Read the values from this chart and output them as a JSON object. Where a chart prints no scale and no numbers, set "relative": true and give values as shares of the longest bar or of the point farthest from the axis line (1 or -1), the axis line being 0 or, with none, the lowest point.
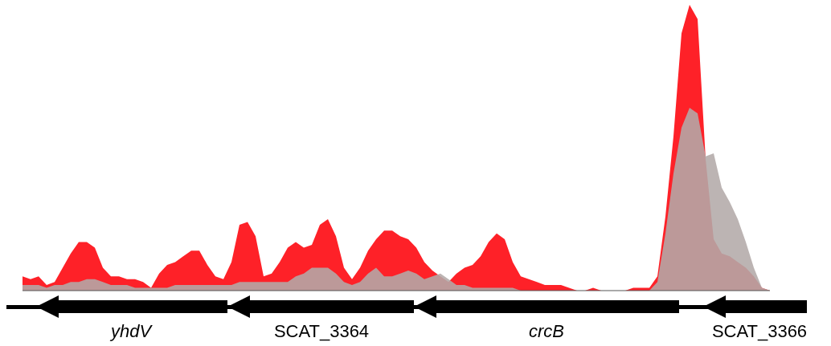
{
  "chart_data": {
    "type": "area",
    "relative": true,
    "categories": [
      null,
      null,
      null,
      null,
      null,
      null,
      null,
      null,
      null,
      null,
      null,
      null,
      null,
      null,
      null,
      null,
      null,
      null,
      null,
      null,
      null,
      null,
      null,
      null,
      null,
      null,
      null,
      null,
      null,
      null,
      null,
      null,
      null,
      null,
      null,
      null,
      null,
      null,
      null,
      null,
      null,
      null,
      null,
      null,
      null,
      null,
      null,
      null,
      null,
      null,
      null,
      null,
      null,
      null,
      null,
      null,
      null,
      null,
      null,
      null,
      null,
      null,
      null,
      null,
      null,
      null,
      null,
      null,
      null,
      null,
      null,
      null,
      null,
      null,
      null,
      null,
      null,
      null,
      null,
      null,
      null,
      null,
      null,
      null,
      null,
      null,
      null,
      null,
      null,
      null,
      null,
      null,
      null,
      null
    ],
    "series": [
      {
        "color": "#fe2128",
        "values": [
          0.05,
          0.04,
          0.05,
          0.02,
          0.03,
          0.08,
          0.13,
          0.17,
          0.17,
          0.15,
          0.08,
          0.05,
          0.05,
          0.04,
          0.04,
          0.03,
          0.01,
          0.06,
          0.09,
          0.1,
          0.12,
          0.14,
          0.14,
          0.09,
          0.05,
          0.04,
          0.1,
          0.23,
          0.24,
          0.19,
          0.05,
          0.06,
          0.1,
          0.15,
          0.17,
          0.15,
          0.16,
          0.23,
          0.25,
          0.19,
          0.08,
          0.04,
          0.08,
          0.14,
          0.18,
          0.21,
          0.21,
          0.19,
          0.18,
          0.15,
          0.1,
          0.07,
          0.05,
          0.03,
          0.06,
          0.08,
          0.09,
          0.12,
          0.17,
          0.2,
          0.18,
          0.1,
          0.05,
          0.04,
          0.03,
          0.02,
          0.02,
          0.02,
          0.01,
          0,
          0,
          0.01,
          0,
          0,
          0,
          0,
          0.01,
          0.01,
          0.01,
          0.05,
          0.26,
          0.54,
          0.9,
          1,
          0.95,
          0.46,
          0.18,
          0.13,
          0.12,
          0.1,
          0.08,
          0.05,
          0.01,
          0
        ]
      },
      {
        "color": "#b3aaa9",
        "values": [
          0.02,
          0.02,
          0.02,
          0.01,
          0.02,
          0.02,
          0.03,
          0.03,
          0.04,
          0.04,
          0.03,
          0.02,
          0.02,
          0.02,
          0.01,
          0.01,
          0.01,
          0.01,
          0.01,
          0.02,
          0.02,
          0.02,
          0.02,
          0.02,
          0.02,
          0.02,
          0.02,
          0.03,
          0.03,
          0.03,
          0.03,
          0.03,
          0.03,
          0.03,
          0.05,
          0.06,
          0.08,
          0.08,
          0.08,
          0.06,
          0.03,
          0.02,
          0.03,
          0.06,
          0.08,
          0.05,
          0.05,
          0.06,
          0.07,
          0.06,
          0.04,
          0.05,
          0.06,
          0.04,
          0.02,
          0.02,
          0.01,
          0.01,
          0.01,
          0.01,
          0.01,
          0.01,
          0,
          0,
          0,
          0,
          0,
          0,
          0,
          0,
          0,
          0,
          0,
          0,
          0,
          0,
          0,
          0,
          0,
          0.03,
          0.2,
          0.41,
          0.57,
          0.64,
          0.62,
          0.47,
          0.48,
          0.36,
          0.31,
          0.25,
          0.17,
          0.08,
          0.01,
          0
        ]
      }
    ],
    "annotations": [
      "yhdV",
      "SCAT_3364",
      "crcB",
      "SCAT_3366"
    ]
  }
}
